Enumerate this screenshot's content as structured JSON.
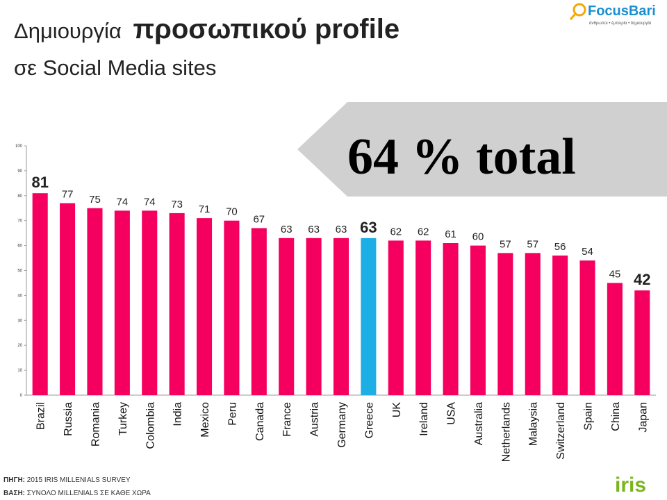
{
  "header": {
    "title_normal": "Δημιουργία",
    "title_bold": "προσωπικού profile",
    "subtitle": "σε Social Media sites",
    "logo": "FocusBari",
    "logo_tagline": "άνθρωποι • έμπειρία • δημιουργία",
    "banner": "64 % total"
  },
  "chart_data": {
    "type": "bar",
    "categories": [
      "Brazil",
      "Russia",
      "Romania",
      "Turkey",
      "Colombia",
      "India",
      "Mexico",
      "Peru",
      "Canada",
      "France",
      "Austria",
      "Germany",
      "Greece",
      "UK",
      "Ireland",
      "USA",
      "Australia",
      "Netherlands",
      "Malaysia",
      "Switzerland",
      "Spain",
      "China",
      "Japan"
    ],
    "values": [
      81,
      77,
      75,
      74,
      74,
      73,
      71,
      70,
      67,
      63,
      63,
      63,
      63,
      62,
      62,
      61,
      60,
      57,
      57,
      56,
      54,
      45,
      42
    ],
    "colors": [
      "#f5005f",
      "#f5005f",
      "#f5005f",
      "#f5005f",
      "#f5005f",
      "#f5005f",
      "#f5005f",
      "#f5005f",
      "#f5005f",
      "#f5005f",
      "#f5005f",
      "#f5005f",
      "#1eaee6",
      "#f5005f",
      "#f5005f",
      "#f5005f",
      "#f5005f",
      "#f5005f",
      "#f5005f",
      "#f5005f",
      "#f5005f",
      "#f5005f",
      "#f5005f"
    ],
    "label_emphasis": [
      true,
      false,
      false,
      false,
      false,
      false,
      false,
      false,
      false,
      false,
      false,
      false,
      true,
      false,
      false,
      false,
      false,
      false,
      false,
      false,
      false,
      false,
      true
    ],
    "ylim": [
      0,
      100
    ],
    "yticks": [
      0,
      10,
      20,
      30,
      40,
      50,
      60,
      70,
      80,
      90,
      100
    ],
    "grid": false
  },
  "footer": {
    "source_label": "ΠΗΓΗ:",
    "source": " 2015 IRIS MILLENIALS SURVEY",
    "base_label": "ΒΑΣΗ:",
    "base": " ΣΥΝΟΛΟ MILLENIALS ΣΕ ΚΑΘΕ ΧΩΡΑ",
    "brand": "iris"
  }
}
